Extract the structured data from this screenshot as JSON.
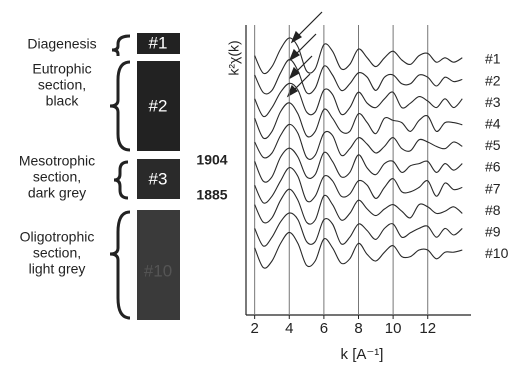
{
  "core_diagram": {
    "diagenesis": "Diagenesis",
    "eutrophic": [
      "Eutrophic",
      "section,",
      "black"
    ],
    "mesotrophic": [
      "Mesotrophic",
      "section,",
      "dark grey"
    ],
    "oligotrophic": [
      "Oligotrophic",
      "section,",
      "light grey"
    ],
    "box_labels": [
      "#1",
      "#2",
      "#3",
      "#10"
    ],
    "years": [
      "1904",
      "1885"
    ]
  },
  "chart_data": {
    "type": "line",
    "y_label": "k²χ(k)",
    "x_label": "k [A⁻¹]",
    "color": "#2a2a2a",
    "grid": true,
    "xlim": [
      1.5,
      14.5
    ],
    "xticks": [
      2,
      4,
      6,
      8,
      10,
      12
    ],
    "ylim": [
      -1,
      1
    ],
    "x": [
      2,
      2.5,
      3,
      3.5,
      4,
      4.5,
      5,
      5.5,
      6,
      6.5,
      7,
      7.5,
      8,
      8.5,
      9,
      9.5,
      10,
      10.5,
      11,
      11.5,
      12,
      12.5,
      13,
      13.5,
      14
    ],
    "series": [
      {
        "name": "#1",
        "values": [
          0.2,
          -0.6,
          -0.3,
          0.5,
          1.0,
          0.6,
          -0.5,
          -0.4,
          0.7,
          0.4,
          -0.4,
          -0.2,
          0.5,
          0.1,
          -0.3,
          0.1,
          0.4,
          0.0,
          -0.2,
          0.2,
          0.3,
          -0.1,
          0.1,
          -0.1,
          0.1
        ]
      },
      {
        "name": "#2",
        "values": [
          0.3,
          -0.5,
          -0.4,
          0.4,
          1.0,
          0.5,
          -0.5,
          -0.3,
          0.7,
          0.3,
          -0.4,
          -0.1,
          0.4,
          0.2,
          -0.4,
          0.2,
          0.3,
          -0.1,
          -0.1,
          0.3,
          0.2,
          -0.2,
          0.2,
          0.0,
          0.1
        ]
      },
      {
        "name": "#3",
        "values": [
          0.2,
          -0.6,
          -0.2,
          0.5,
          0.9,
          0.6,
          -0.4,
          -0.4,
          0.6,
          0.4,
          -0.5,
          -0.2,
          0.5,
          0.0,
          -0.2,
          0.2,
          0.5,
          -0.2,
          0.0,
          0.3,
          0.1,
          -0.2,
          0.2,
          -0.2,
          0.2
        ]
      },
      {
        "name": "#4",
        "values": [
          0.3,
          -0.6,
          -0.3,
          0.6,
          1.0,
          0.5,
          -0.5,
          -0.3,
          0.7,
          0.3,
          -0.3,
          -0.3,
          0.5,
          0.1,
          -0.4,
          0.3,
          0.2,
          0.1,
          -0.3,
          0.2,
          0.4,
          -0.3,
          0.1,
          0.1,
          0.0
        ]
      },
      {
        "name": "#5",
        "values": [
          0.2,
          -0.5,
          -0.3,
          0.5,
          1.0,
          0.6,
          -0.5,
          -0.4,
          0.6,
          0.5,
          -0.4,
          -0.1,
          0.4,
          0.1,
          -0.3,
          0.0,
          0.4,
          -0.1,
          -0.2,
          0.3,
          0.2,
          0.0,
          -0.1,
          0.2,
          0.0
        ]
      },
      {
        "name": "#6",
        "values": [
          0.3,
          -0.6,
          -0.4,
          0.5,
          0.9,
          0.5,
          -0.4,
          -0.3,
          0.7,
          0.3,
          -0.4,
          -0.2,
          0.6,
          0.0,
          -0.3,
          0.2,
          0.3,
          -0.2,
          0.1,
          0.2,
          0.3,
          -0.2,
          0.2,
          -0.1,
          0.2
        ]
      },
      {
        "name": "#7",
        "values": [
          0.2,
          -0.6,
          -0.3,
          0.4,
          1.0,
          0.6,
          -0.5,
          -0.3,
          0.6,
          0.4,
          -0.3,
          -0.2,
          0.4,
          0.2,
          -0.4,
          0.1,
          0.5,
          -0.1,
          -0.1,
          0.1,
          0.4,
          -0.3,
          0.3,
          0.0,
          0.1
        ]
      },
      {
        "name": "#8",
        "values": [
          0.3,
          -0.5,
          -0.3,
          0.5,
          1.0,
          0.5,
          -0.5,
          -0.4,
          0.7,
          0.3,
          -0.4,
          -0.1,
          0.5,
          0.1,
          -0.2,
          0.1,
          0.3,
          0.0,
          -0.3,
          0.3,
          0.2,
          -0.1,
          0.0,
          0.2,
          -0.1
        ]
      },
      {
        "name": "#9",
        "values": [
          0.2,
          -0.6,
          -0.2,
          0.5,
          0.9,
          0.6,
          -0.4,
          -0.4,
          0.6,
          0.4,
          -0.5,
          -0.2,
          0.4,
          0.1,
          -0.3,
          0.2,
          0.4,
          -0.2,
          0.0,
          0.2,
          0.3,
          -0.2,
          0.2,
          -0.1,
          0.2
        ]
      },
      {
        "name": "#10",
        "values": [
          0.3,
          -0.6,
          -0.3,
          0.5,
          1.0,
          0.5,
          -0.5,
          -0.3,
          0.7,
          0.3,
          -0.4,
          -0.2,
          0.5,
          0.0,
          -0.3,
          0.1,
          0.4,
          -0.1,
          -0.1,
          0.2,
          0.2,
          -0.2,
          0.1,
          0.1,
          0.2
        ]
      }
    ]
  }
}
